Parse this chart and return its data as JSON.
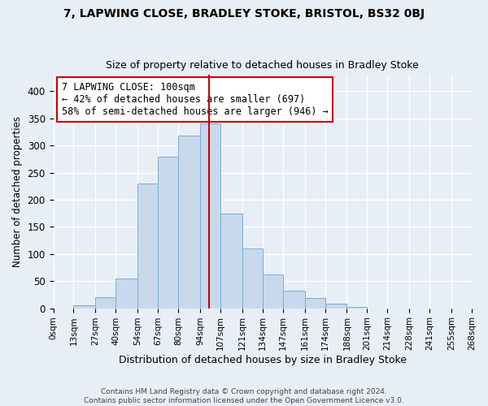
{
  "title": "7, LAPWING CLOSE, BRADLEY STOKE, BRISTOL, BS32 0BJ",
  "subtitle": "Size of property relative to detached houses in Bradley Stoke",
  "xlabel": "Distribution of detached houses by size in Bradley Stoke",
  "ylabel": "Number of detached properties",
  "footer_line1": "Contains HM Land Registry data © Crown copyright and database right 2024.",
  "footer_line2": "Contains public sector information licensed under the Open Government Licence v3.0.",
  "bin_labels": [
    "0sqm",
    "13sqm",
    "27sqm",
    "40sqm",
    "54sqm",
    "67sqm",
    "80sqm",
    "94sqm",
    "107sqm",
    "121sqm",
    "134sqm",
    "147sqm",
    "161sqm",
    "174sqm",
    "188sqm",
    "201sqm",
    "214sqm",
    "228sqm",
    "241sqm",
    "255sqm",
    "268sqm"
  ],
  "bin_edges": [
    0,
    13,
    27,
    40,
    54,
    67,
    80,
    94,
    107,
    121,
    134,
    147,
    161,
    174,
    188,
    201,
    214,
    228,
    241,
    255,
    268
  ],
  "bar_heights": [
    0,
    5,
    20,
    55,
    230,
    280,
    318,
    340,
    175,
    110,
    62,
    33,
    19,
    8,
    2,
    0,
    0,
    0,
    0,
    0
  ],
  "bar_color": "#c8d9ed",
  "bar_edge_color": "#7aadd0",
  "property_line_x": 100,
  "property_line_color": "#cc0000",
  "annotation_title": "7 LAPWING CLOSE: 100sqm",
  "annotation_line1": "← 42% of detached houses are smaller (697)",
  "annotation_line2": "58% of semi-detached houses are larger (946) →",
  "annotation_box_facecolor": "#ffffff",
  "annotation_box_edgecolor": "#cc0000",
  "ylim": [
    0,
    430
  ],
  "yticks": [
    0,
    50,
    100,
    150,
    200,
    250,
    300,
    350,
    400
  ],
  "background_color": "#e8eef5",
  "grid_color": "#ffffff",
  "title_fontsize": 10,
  "subtitle_fontsize": 9,
  "ylabel_fontsize": 8.5,
  "xlabel_fontsize": 9,
  "ytick_fontsize": 8.5,
  "xtick_fontsize": 7.5,
  "footer_fontsize": 6.5,
  "annotation_fontsize": 8.5
}
